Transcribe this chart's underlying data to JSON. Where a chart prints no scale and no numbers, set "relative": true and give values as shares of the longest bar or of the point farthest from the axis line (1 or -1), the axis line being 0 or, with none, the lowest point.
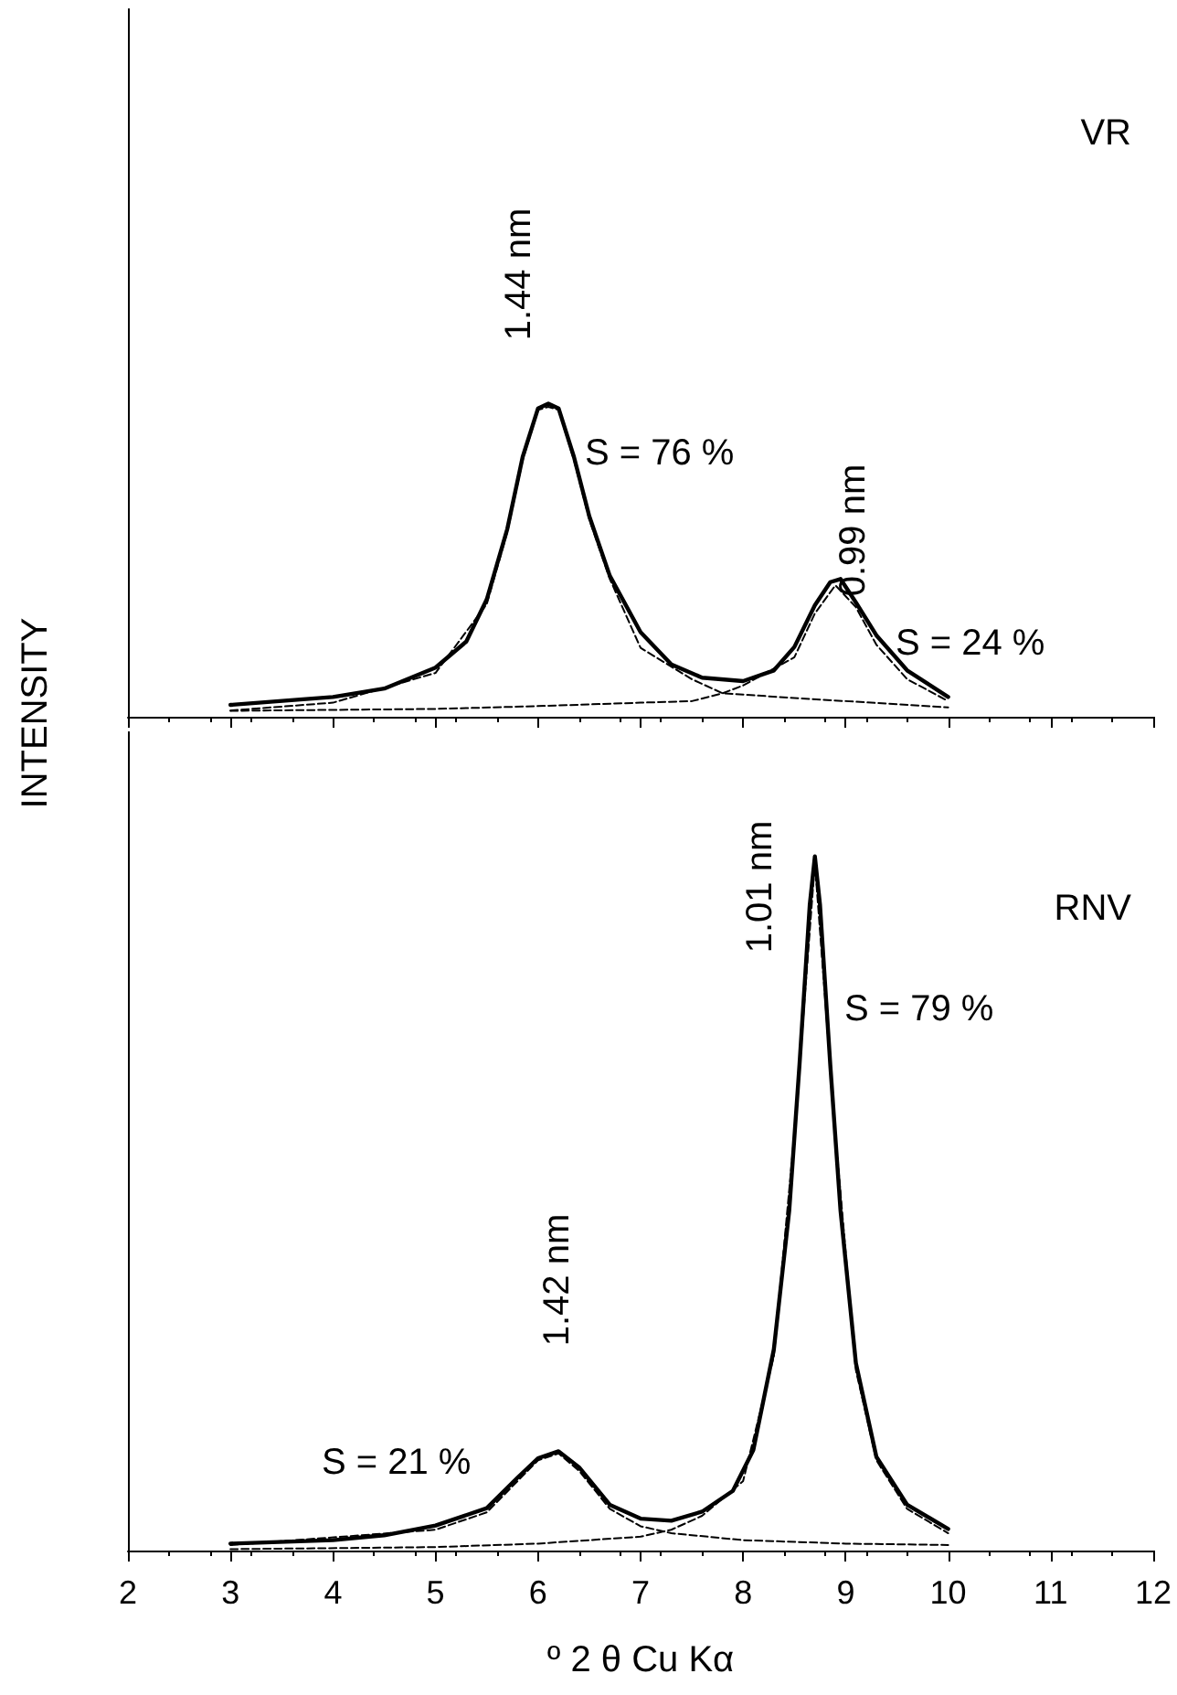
{
  "chart_data": [
    {
      "type": "line",
      "relative": true,
      "title": "VR",
      "ylabel": "INTENSITY",
      "xlim": [
        2,
        12
      ],
      "xticks": [
        2,
        3,
        4,
        5,
        6,
        7,
        8,
        9,
        10,
        11,
        12
      ],
      "tick_labels": false,
      "marker": "none",
      "annotations": [
        "1.44 nm",
        "S = 76 %",
        "0.99 nm",
        "S = 24 %"
      ],
      "series": [
        {
          "color": "#000000",
          "line_style": "solid",
          "x": [
            3,
            4,
            4.5,
            5,
            5.3,
            5.5,
            5.7,
            5.85,
            6.0,
            6.1,
            6.2,
            6.35,
            6.5,
            6.7,
            7.0,
            7.3,
            7.6,
            8.0,
            8.3,
            8.5,
            8.7,
            8.85,
            8.95,
            9.1,
            9.3,
            9.6,
            10
          ],
          "values": [
            0.038,
            0.063,
            0.09,
            0.157,
            0.24,
            0.375,
            0.6,
            0.83,
            0.985,
            1.0,
            0.985,
            0.83,
            0.64,
            0.45,
            0.27,
            0.167,
            0.125,
            0.114,
            0.148,
            0.223,
            0.356,
            0.43,
            0.44,
            0.365,
            0.26,
            0.148,
            0.063
          ]
        },
        {
          "color": "#000000",
          "line_style": "dashed",
          "x": [
            3,
            4,
            5,
            5.5,
            5.7,
            5.85,
            6.0,
            6.1,
            6.2,
            6.35,
            6.5,
            6.7,
            7.0,
            7.5,
            7.8,
            8.5,
            9,
            10
          ],
          "values": [
            0.02,
            0.045,
            0.14,
            0.36,
            0.59,
            0.82,
            0.98,
            0.99,
            0.98,
            0.82,
            0.63,
            0.44,
            0.22,
            0.12,
            0.075,
            0.06,
            0.05,
            0.03
          ]
        },
        {
          "color": "#000000",
          "line_style": "dashed",
          "x": [
            3,
            5,
            6,
            7,
            7.5,
            7.8,
            8,
            8.5,
            8.7,
            8.9,
            9.1,
            9.3,
            9.6,
            10
          ],
          "values": [
            0.019,
            0.025,
            0.034,
            0.045,
            0.05,
            0.075,
            0.1,
            0.19,
            0.33,
            0.42,
            0.35,
            0.23,
            0.12,
            0.05
          ]
        }
      ]
    },
    {
      "type": "line",
      "relative": true,
      "title": "RNV",
      "xlabel": "º 2 θ Cu Kα",
      "xlim": [
        2,
        12
      ],
      "xticks": [
        2,
        3,
        4,
        5,
        6,
        7,
        8,
        9,
        10,
        11,
        12
      ],
      "tick_labels": "x",
      "marker": "none",
      "annotations": [
        "1.01 nm",
        "S = 79 %",
        "1.42 nm",
        "S = 21 %"
      ],
      "series": [
        {
          "color": "#000000",
          "line_style": "solid",
          "x": [
            3,
            4,
            4.5,
            5,
            5.5,
            5.8,
            6.0,
            6.2,
            6.4,
            6.7,
            7.0,
            7.3,
            7.6,
            7.9,
            8.1,
            8.3,
            8.45,
            8.55,
            8.65,
            8.7,
            8.75,
            8.85,
            8.95,
            9.1,
            9.3,
            9.6,
            10
          ],
          "values": [
            0.01,
            0.015,
            0.022,
            0.036,
            0.061,
            0.105,
            0.133,
            0.143,
            0.12,
            0.066,
            0.046,
            0.043,
            0.056,
            0.086,
            0.145,
            0.29,
            0.49,
            0.7,
            0.93,
            1.0,
            0.93,
            0.7,
            0.49,
            0.27,
            0.135,
            0.066,
            0.031
          ]
        },
        {
          "color": "#000000",
          "line_style": "dashed",
          "x": [
            3,
            5,
            5.5,
            6.0,
            6.2,
            6.4,
            6.7,
            7,
            7.3,
            8,
            9,
            10
          ],
          "values": [
            0.008,
            0.03,
            0.055,
            0.13,
            0.14,
            0.115,
            0.06,
            0.035,
            0.025,
            0.015,
            0.01,
            0.008
          ]
        },
        {
          "color": "#000000",
          "line_style": "dashed",
          "x": [
            3,
            5,
            6,
            7,
            7.3,
            7.6,
            8,
            8.3,
            8.5,
            8.7,
            8.9,
            9.1,
            9.3,
            9.6,
            10
          ],
          "values": [
            0.002,
            0.005,
            0.01,
            0.02,
            0.03,
            0.05,
            0.1,
            0.28,
            0.6,
            0.99,
            0.6,
            0.26,
            0.13,
            0.06,
            0.025
          ]
        }
      ]
    }
  ]
}
